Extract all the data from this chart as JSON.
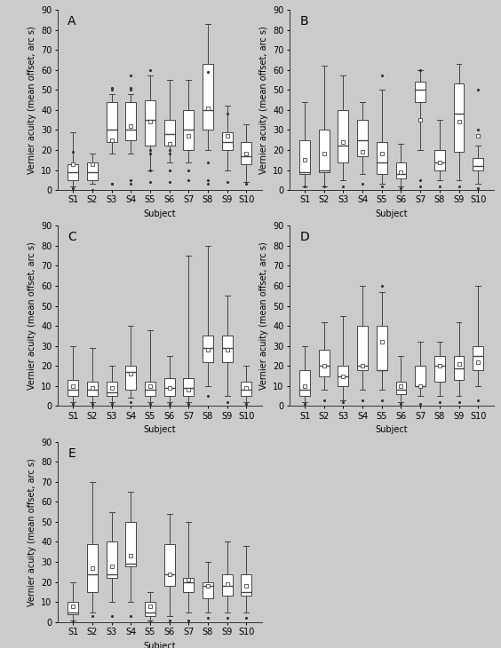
{
  "panels": {
    "A": {
      "subjects": [
        "S1",
        "S2",
        "S3",
        "S4",
        "S5",
        "S6",
        "S7",
        "S8",
        "S9",
        "S10"
      ],
      "boxes": [
        {
          "q1": 5,
          "median": 9,
          "q3": 13,
          "whislo": 2,
          "whishi": 29,
          "mean": 13,
          "fliers_above": [
            19
          ],
          "fliers_below": [
            1,
            0
          ]
        },
        {
          "q1": 5,
          "median": 9,
          "q3": 14,
          "whislo": 3,
          "whishi": 18,
          "mean": 13,
          "fliers_above": [],
          "fliers_below": [
            0
          ]
        },
        {
          "q1": 24,
          "median": 30,
          "q3": 44,
          "whislo": 18,
          "whishi": 48,
          "mean": 25,
          "fliers_above": [
            51,
            50
          ],
          "fliers_below": [
            3,
            3
          ]
        },
        {
          "q1": 25,
          "median": 30,
          "q3": 44,
          "whislo": 18,
          "whishi": 48,
          "mean": 32,
          "fliers_above": [
            57,
            51,
            50
          ],
          "fliers_below": [
            5,
            3
          ]
        },
        {
          "q1": 22,
          "median": 35,
          "q3": 45,
          "whislo": 10,
          "whishi": 57,
          "mean": 34,
          "fliers_above": [
            60
          ],
          "fliers_below": [
            20,
            18,
            10,
            4
          ]
        },
        {
          "q1": 22,
          "median": 28,
          "q3": 35,
          "whislo": 14,
          "whishi": 55,
          "mean": 23,
          "fliers_above": [],
          "fliers_below": [
            20,
            18,
            10,
            4
          ]
        },
        {
          "q1": 20,
          "median": 30,
          "q3": 40,
          "whislo": 14,
          "whishi": 55,
          "mean": 27,
          "fliers_above": [],
          "fliers_below": [
            10,
            5
          ]
        },
        {
          "q1": 30,
          "median": 40,
          "q3": 63,
          "whislo": 20,
          "whishi": 83,
          "mean": 41,
          "fliers_above": [
            59
          ],
          "fliers_below": [
            14,
            5,
            3
          ]
        },
        {
          "q1": 20,
          "median": 24,
          "q3": 29,
          "whislo": 10,
          "whishi": 42,
          "mean": 27,
          "fliers_above": [
            38
          ],
          "fliers_below": [
            4
          ]
        },
        {
          "q1": 13,
          "median": 17,
          "q3": 24,
          "whislo": 4,
          "whishi": 33,
          "mean": 18,
          "fliers_above": [],
          "fliers_below": [
            3
          ]
        }
      ]
    },
    "B": {
      "subjects": [
        "S1",
        "S2",
        "S3",
        "S4",
        "S5",
        "S6",
        "S7",
        "S8",
        "S9",
        "S10"
      ],
      "boxes": [
        {
          "q1": 8,
          "median": 9,
          "q3": 25,
          "whislo": 2,
          "whishi": 44,
          "mean": 15,
          "fliers_above": [],
          "fliers_below": [
            2
          ]
        },
        {
          "q1": 9,
          "median": 10,
          "q3": 30,
          "whislo": 2,
          "whishi": 62,
          "mean": 18,
          "fliers_above": [],
          "fliers_below": [
            2
          ]
        },
        {
          "q1": 14,
          "median": 22,
          "q3": 40,
          "whislo": 5,
          "whishi": 57,
          "mean": 24,
          "fliers_above": [],
          "fliers_below": [
            2
          ]
        },
        {
          "q1": 17,
          "median": 25,
          "q3": 35,
          "whislo": 8,
          "whishi": 44,
          "mean": 19,
          "fliers_above": [],
          "fliers_below": [
            3
          ]
        },
        {
          "q1": 8,
          "median": 14,
          "q3": 24,
          "whislo": 3,
          "whishi": 50,
          "mean": 18,
          "fliers_above": [
            57
          ],
          "fliers_below": [
            2
          ]
        },
        {
          "q1": 6,
          "median": 8,
          "q3": 14,
          "whislo": 2,
          "whishi": 23,
          "mean": 9,
          "fliers_above": [],
          "fliers_below": [
            1
          ]
        },
        {
          "q1": 44,
          "median": 50,
          "q3": 54,
          "whislo": 20,
          "whishi": 60,
          "mean": 35,
          "fliers_above": [
            60
          ],
          "fliers_below": [
            5,
            2
          ]
        },
        {
          "q1": 10,
          "median": 14,
          "q3": 20,
          "whislo": 5,
          "whishi": 35,
          "mean": 14,
          "fliers_above": [],
          "fliers_below": [
            2
          ]
        },
        {
          "q1": 19,
          "median": 38,
          "q3": 53,
          "whislo": 5,
          "whishi": 63,
          "mean": 34,
          "fliers_above": [],
          "fliers_below": [
            2
          ]
        },
        {
          "q1": 10,
          "median": 12,
          "q3": 16,
          "whislo": 3,
          "whishi": 22,
          "mean": 27,
          "fliers_above": [
            50,
            30
          ],
          "fliers_below": [
            1
          ]
        }
      ]
    },
    "C": {
      "subjects": [
        "S1",
        "S2",
        "S3",
        "S4",
        "S5",
        "S6",
        "S7",
        "S8",
        "S9",
        "S10"
      ],
      "boxes": [
        {
          "q1": 5,
          "median": 8,
          "q3": 13,
          "whislo": 2,
          "whishi": 30,
          "mean": 10,
          "fliers_above": [],
          "fliers_below": [
            1
          ]
        },
        {
          "q1": 5,
          "median": 8,
          "q3": 12,
          "whislo": 2,
          "whishi": 29,
          "mean": 9,
          "fliers_above": [],
          "fliers_below": [
            1
          ]
        },
        {
          "q1": 5,
          "median": 7,
          "q3": 12,
          "whislo": 2,
          "whishi": 20,
          "mean": 9,
          "fliers_above": [],
          "fliers_below": [
            1
          ]
        },
        {
          "q1": 8,
          "median": 17,
          "q3": 20,
          "whislo": 4,
          "whishi": 40,
          "mean": 16,
          "fliers_above": [],
          "fliers_below": [
            2
          ]
        },
        {
          "q1": 5,
          "median": 8,
          "q3": 12,
          "whislo": 2,
          "whishi": 38,
          "mean": 10,
          "fliers_above": [],
          "fliers_below": [
            1
          ]
        },
        {
          "q1": 5,
          "median": 9,
          "q3": 14,
          "whislo": 2,
          "whishi": 25,
          "mean": 9,
          "fliers_above": [],
          "fliers_below": [
            1
          ]
        },
        {
          "q1": 5,
          "median": 9,
          "q3": 14,
          "whislo": 2,
          "whishi": 75,
          "mean": 8,
          "fliers_above": [],
          "fliers_below": [
            1
          ]
        },
        {
          "q1": 22,
          "median": 29,
          "q3": 35,
          "whislo": 10,
          "whishi": 80,
          "mean": 28,
          "fliers_above": [],
          "fliers_below": [
            5
          ]
        },
        {
          "q1": 22,
          "median": 29,
          "q3": 35,
          "whislo": 5,
          "whishi": 55,
          "mean": 28,
          "fliers_above": [],
          "fliers_below": [
            2
          ]
        },
        {
          "q1": 5,
          "median": 8,
          "q3": 12,
          "whislo": 2,
          "whishi": 20,
          "mean": 9,
          "fliers_above": [],
          "fliers_below": [
            1
          ]
        }
      ]
    },
    "D": {
      "subjects": [
        "S1",
        "S2",
        "S3",
        "S4",
        "S5",
        "S6",
        "S7",
        "S8",
        "S9",
        "S10"
      ],
      "boxes": [
        {
          "q1": 5,
          "median": 8,
          "q3": 18,
          "whislo": 2,
          "whishi": 30,
          "mean": 10,
          "fliers_above": [],
          "fliers_below": [
            1
          ]
        },
        {
          "q1": 15,
          "median": 20,
          "q3": 28,
          "whislo": 8,
          "whishi": 42,
          "mean": 20,
          "fliers_above": [],
          "fliers_below": [
            3
          ]
        },
        {
          "q1": 10,
          "median": 15,
          "q3": 20,
          "whislo": 3,
          "whishi": 45,
          "mean": 15,
          "fliers_above": [],
          "fliers_below": [
            2
          ]
        },
        {
          "q1": 18,
          "median": 20,
          "q3": 40,
          "whislo": 8,
          "whishi": 60,
          "mean": 20,
          "fliers_above": [],
          "fliers_below": [
            3
          ]
        },
        {
          "q1": 18,
          "median": 18,
          "q3": 40,
          "whislo": 8,
          "whishi": 57,
          "mean": 32,
          "fliers_above": [
            60
          ],
          "fliers_below": [
            3
          ]
        },
        {
          "q1": 6,
          "median": 8,
          "q3": 12,
          "whislo": 2,
          "whishi": 25,
          "mean": 10,
          "fliers_above": [],
          "fliers_below": [
            1
          ]
        },
        {
          "q1": 10,
          "median": 10,
          "q3": 20,
          "whislo": 5,
          "whishi": 32,
          "mean": 10,
          "fliers_above": [],
          "fliers_below": [
            1
          ]
        },
        {
          "q1": 12,
          "median": 20,
          "q3": 25,
          "whislo": 5,
          "whishi": 32,
          "mean": 20,
          "fliers_above": [],
          "fliers_below": [
            2
          ]
        },
        {
          "q1": 13,
          "median": 19,
          "q3": 25,
          "whislo": 5,
          "whishi": 42,
          "mean": 21,
          "fliers_above": [],
          "fliers_below": [
            2
          ]
        },
        {
          "q1": 18,
          "median": 25,
          "q3": 30,
          "whislo": 10,
          "whishi": 60,
          "mean": 22,
          "fliers_above": [],
          "fliers_below": [
            3
          ]
        }
      ]
    },
    "E": {
      "subjects": [
        "S1",
        "S2",
        "S3",
        "S4",
        "S5",
        "S6",
        "S7",
        "S8",
        "S9",
        "S10"
      ],
      "boxes": [
        {
          "q1": 4,
          "median": 5,
          "q3": 10,
          "whislo": 1,
          "whishi": 20,
          "mean": 8,
          "fliers_above": [],
          "fliers_below": [
            0
          ]
        },
        {
          "q1": 15,
          "median": 24,
          "q3": 39,
          "whislo": 5,
          "whishi": 70,
          "mean": 27,
          "fliers_above": [],
          "fliers_below": [
            3
          ]
        },
        {
          "q1": 22,
          "median": 24,
          "q3": 40,
          "whislo": 10,
          "whishi": 55,
          "mean": 28,
          "fliers_above": [],
          "fliers_below": [
            3
          ]
        },
        {
          "q1": 28,
          "median": 29,
          "q3": 50,
          "whislo": 10,
          "whishi": 65,
          "mean": 33,
          "fliers_above": [],
          "fliers_below": [
            3
          ]
        },
        {
          "q1": 3,
          "median": 5,
          "q3": 10,
          "whislo": 1,
          "whishi": 15,
          "mean": 8,
          "fliers_above": [],
          "fliers_below": [
            0
          ]
        },
        {
          "q1": 18,
          "median": 24,
          "q3": 39,
          "whislo": 3,
          "whishi": 54,
          "mean": 24,
          "fliers_above": [],
          "fliers_below": [
            1
          ]
        },
        {
          "q1": 15,
          "median": 20,
          "q3": 22,
          "whislo": 5,
          "whishi": 50,
          "mean": 21,
          "fliers_above": [],
          "fliers_below": [
            1
          ]
        },
        {
          "q1": 12,
          "median": 18,
          "q3": 20,
          "whislo": 5,
          "whishi": 30,
          "mean": 18,
          "fliers_above": [],
          "fliers_below": [
            2
          ]
        },
        {
          "q1": 13,
          "median": 18,
          "q3": 24,
          "whislo": 5,
          "whishi": 40,
          "mean": 19,
          "fliers_above": [],
          "fliers_below": [
            2
          ]
        },
        {
          "q1": 13,
          "median": 15,
          "q3": 24,
          "whislo": 5,
          "whishi": 38,
          "mean": 18,
          "fliers_above": [],
          "fliers_below": [
            2
          ]
        }
      ]
    }
  },
  "ylim": [
    0,
    90
  ],
  "yticks": [
    0,
    10,
    20,
    30,
    40,
    50,
    60,
    70,
    80,
    90
  ],
  "ylabel": "Vernier acuity (mean offset, arc s)",
  "xlabel": "Subject",
  "background_color": "#cbcbcb",
  "box_facecolor": "white",
  "box_edgecolor": "#444444",
  "median_color": "#444444",
  "flier_color": "#333333",
  "whisker_color": "#444444",
  "cap_color": "#444444",
  "fontsize": 7,
  "panel_labels": [
    "A",
    "B",
    "C",
    "D",
    "E"
  ]
}
